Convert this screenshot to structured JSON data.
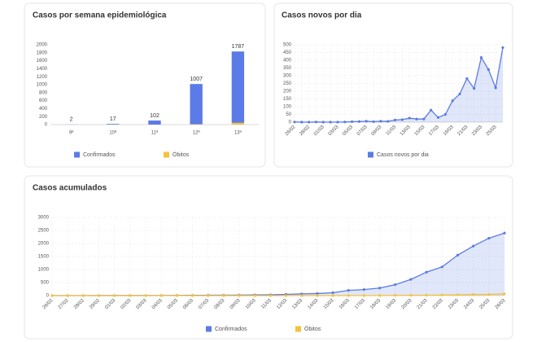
{
  "chart_data": [
    {
      "type": "bar",
      "stacked": true,
      "title": "Casos por semana epidemiológica",
      "categories": [
        "9ª",
        "10ª",
        "11ª",
        "12ª",
        "13ª"
      ],
      "series": [
        {
          "name": "Confirmados",
          "color": "#5b7be6",
          "values": [
            2,
            17,
            102,
            1007,
            1787
          ]
        },
        {
          "name": "Óbitos",
          "color": "#f4c23c",
          "values": [
            0,
            0,
            0,
            10,
            45
          ]
        }
      ],
      "ylim": [
        0,
        2000
      ],
      "yticks": [
        0,
        200,
        400,
        600,
        800,
        1000,
        1200,
        1400,
        1600,
        1800,
        2000
      ],
      "grid": false,
      "legend": "bottom",
      "data_labels": true
    },
    {
      "type": "area",
      "title": "Casos novos por dia",
      "categories": [
        "26/02",
        null,
        "28/02",
        null,
        "01/03",
        null,
        "03/03",
        null,
        "05/03",
        null,
        "07/03",
        null,
        "09/03",
        null,
        "11/03",
        null,
        "13/03",
        null,
        "15/03",
        null,
        "17/03",
        null,
        "19/03",
        null,
        "21/03",
        null,
        "23/03",
        null,
        "25/03",
        null
      ],
      "series": [
        {
          "name": "Casos novos por dia",
          "color": "#5b7be6",
          "values": [
            1,
            0,
            0,
            1,
            0,
            0,
            0,
            1,
            3,
            4,
            6,
            3,
            6,
            5,
            14,
            16,
            26,
            20,
            20,
            78,
            30,
            50,
            138,
            182,
            282,
            218,
            418,
            340,
            222,
            482
          ]
        }
      ],
      "ylim": [
        0,
        500
      ],
      "yticks": [
        0,
        50,
        100,
        150,
        200,
        250,
        300,
        350,
        400,
        450,
        500
      ],
      "grid": true,
      "legend": "bottom"
    },
    {
      "type": "area",
      "title": "Casos acumulados",
      "categories": [
        "26/02",
        "27/02",
        "28/02",
        "29/02",
        "01/03",
        "02/03",
        "03/03",
        "04/03",
        "05/03",
        "06/03",
        "07/03",
        "08/03",
        "09/03",
        "10/03",
        "11/03",
        "12/03",
        "13/03",
        "14/03",
        "15/03",
        "16/03",
        "17/03",
        "18/03",
        "19/03",
        "20/03",
        "21/03",
        "22/03",
        "23/03",
        "24/03",
        "25/03",
        "26/03"
      ],
      "series": [
        {
          "name": "Confirmados",
          "color": "#5b7be6",
          "values": [
            1,
            1,
            1,
            2,
            2,
            2,
            2,
            3,
            6,
            10,
            13,
            16,
            19,
            25,
            30,
            46,
            65,
            80,
            110,
            200,
            230,
            290,
            420,
            620,
            900,
            1100,
            1550,
            1900,
            2200,
            2400
          ]
        },
        {
          "name": "Óbitos",
          "color": "#f4c23c",
          "values": [
            0,
            0,
            0,
            0,
            0,
            0,
            0,
            0,
            0,
            0,
            0,
            0,
            0,
            0,
            0,
            0,
            0,
            0,
            0,
            0,
            1,
            4,
            7,
            11,
            15,
            22,
            30,
            40,
            48,
            68
          ]
        }
      ],
      "ylim": [
        0,
        3000
      ],
      "yticks": [
        0,
        500,
        1000,
        1500,
        2000,
        2500,
        3000
      ],
      "grid": true,
      "legend": "bottom"
    }
  ]
}
